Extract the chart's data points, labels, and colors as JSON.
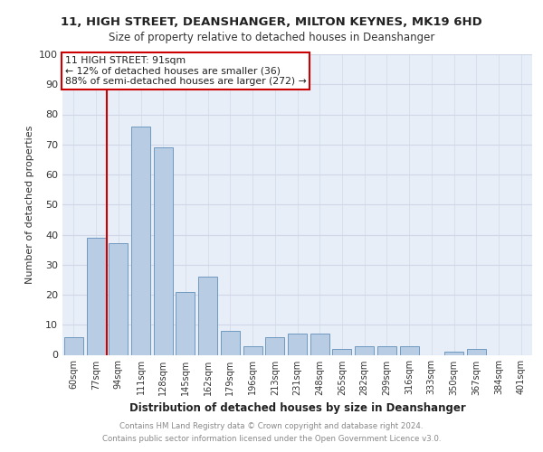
{
  "title1": "11, HIGH STREET, DEANSHANGER, MILTON KEYNES, MK19 6HD",
  "title2": "Size of property relative to detached houses in Deanshanger",
  "xlabel": "Distribution of detached houses by size in Deanshanger",
  "ylabel": "Number of detached properties",
  "categories": [
    "60sqm",
    "77sqm",
    "94sqm",
    "111sqm",
    "128sqm",
    "145sqm",
    "162sqm",
    "179sqm",
    "196sqm",
    "213sqm",
    "231sqm",
    "248sqm",
    "265sqm",
    "282sqm",
    "299sqm",
    "316sqm",
    "333sqm",
    "350sqm",
    "367sqm",
    "384sqm",
    "401sqm"
  ],
  "values": [
    6,
    39,
    37,
    76,
    69,
    21,
    26,
    8,
    3,
    6,
    7,
    7,
    2,
    3,
    3,
    3,
    0,
    1,
    2,
    0,
    0
  ],
  "bar_color": "#b8cce4",
  "bar_edge_color": "#7099c0",
  "vline_color": "#cc0000",
  "vline_pos": 1.5,
  "annotation_text": "11 HIGH STREET: 91sqm\n← 12% of detached houses are smaller (36)\n88% of semi-detached houses are larger (272) →",
  "annotation_box_color": "#ffffff",
  "annotation_box_edge": "#cc0000",
  "grid_color": "#d0d8e8",
  "background_color": "#e8eef8",
  "footnote1": "Contains HM Land Registry data © Crown copyright and database right 2024.",
  "footnote2": "Contains public sector information licensed under the Open Government Licence v3.0.",
  "ylim": [
    0,
    100
  ],
  "yticks": [
    0,
    10,
    20,
    30,
    40,
    50,
    60,
    70,
    80,
    90,
    100
  ]
}
